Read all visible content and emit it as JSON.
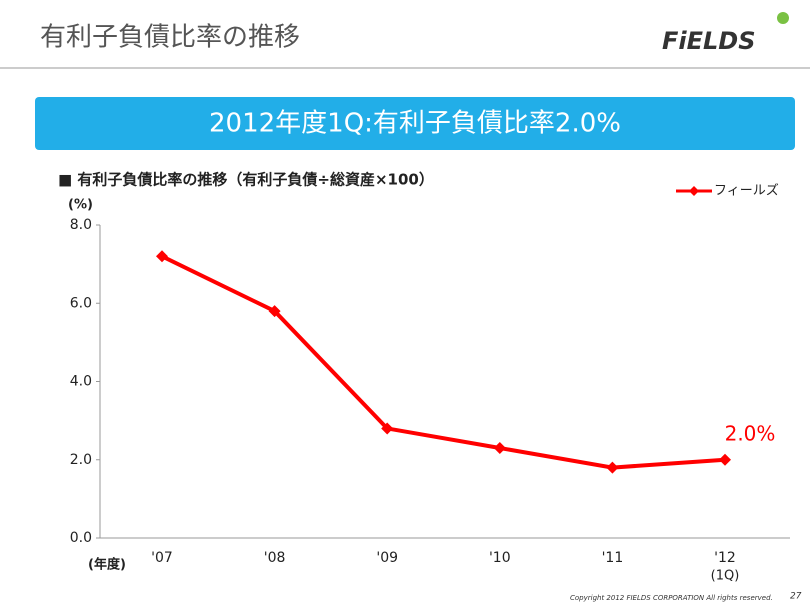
{
  "header": {
    "title": "有利子負債比率の推移",
    "logo": "FiELDS"
  },
  "banner": "2012年度1Q:有利子負債比率2.0%",
  "footer": {
    "copyright": "Copyright 2012  FIELDS CORPORATION  All rights reserved.",
    "page": "27"
  },
  "chart_data": {
    "type": "line",
    "title": "■ 有利子負債比率の推移（有利子負債÷総資産×100）",
    "y_label": "(%)",
    "x_label": "(年度)",
    "categories": [
      "'07",
      "'08",
      "'09",
      "'10",
      "'11",
      "'12"
    ],
    "category_note": "(1Q)",
    "series": [
      {
        "name": "フィールズ",
        "color": "#ff0000",
        "values": [
          7.2,
          5.8,
          2.8,
          2.3,
          1.8,
          2.0
        ],
        "value_labels": [
          null,
          null,
          null,
          null,
          null,
          "2.0%"
        ]
      }
    ],
    "ylim": [
      0,
      8
    ],
    "yticks": [
      {
        "value": 0,
        "label": "0.0"
      },
      {
        "value": 2,
        "label": "2.0"
      },
      {
        "value": 4,
        "label": "4.0"
      },
      {
        "value": 6,
        "label": "6.0"
      },
      {
        "value": 8,
        "label": "8.0"
      }
    ],
    "legend": "top-right",
    "grid": false
  }
}
